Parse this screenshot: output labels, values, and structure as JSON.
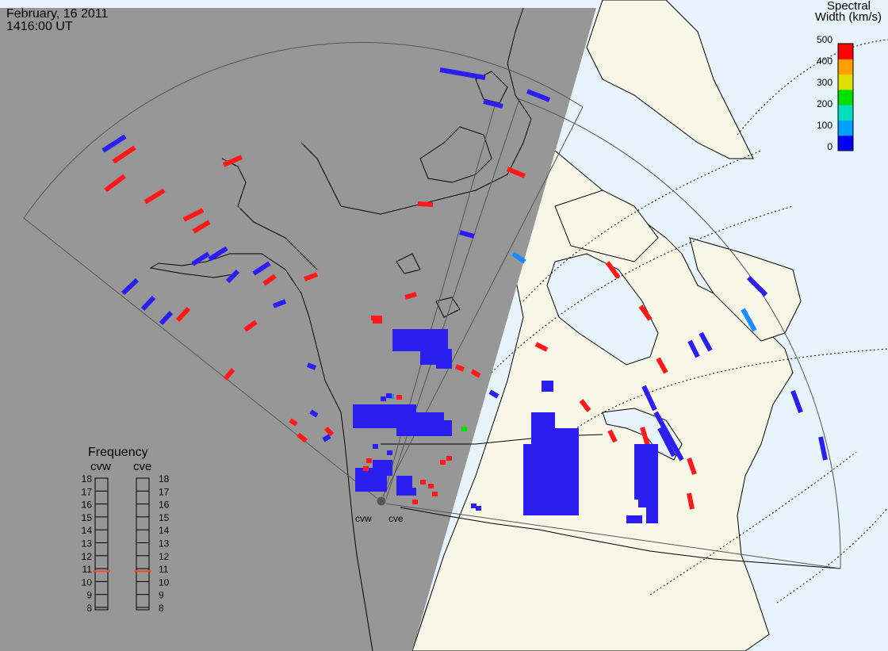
{
  "header": {
    "date": "February, 16 2011",
    "time": "1416:00 UT"
  },
  "colorbar": {
    "title_line1": "Spectral",
    "title_line2": "Width (km/s)",
    "ticks": [
      "500",
      "400",
      "300",
      "200",
      "100",
      "0"
    ],
    "colors": [
      "#0000ff",
      "#00a0ff",
      "#00e0c0",
      "#00e000",
      "#e0e000",
      "#ffa000",
      "#ff0000"
    ]
  },
  "frequency": {
    "title": "Frequency",
    "radars": [
      "cvw",
      "cve"
    ],
    "levels": [
      "18",
      "17",
      "16",
      "15",
      "14",
      "13",
      "12",
      "11",
      "10",
      "9",
      "8"
    ],
    "cvw_value": 10.8,
    "cve_value": 10.8
  },
  "radar_labels": {
    "west": "cvw",
    "east": "cve"
  },
  "colors": {
    "night": "#979797",
    "land_day": "#f8f6e6",
    "ocean_day": "#e8f4fc",
    "echo_low": "#2a1ef0",
    "echo_high": "#ff1a1a",
    "echo_mid": "#1a8cff",
    "freq_marker": "#ff4a1a"
  }
}
